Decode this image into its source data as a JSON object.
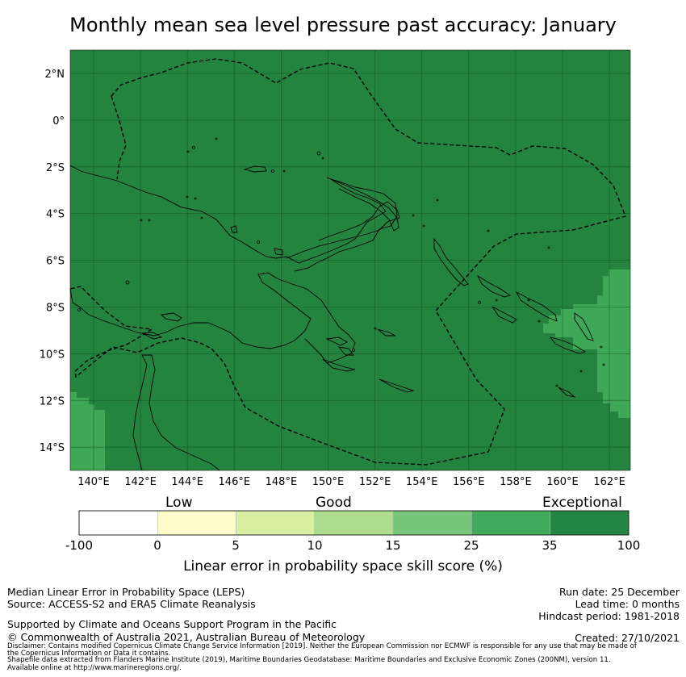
{
  "title": "Monthly mean sea level pressure past accuracy: January",
  "map": {
    "lat_labels": [
      "2°N",
      "0°",
      "2°S",
      "4°S",
      "6°S",
      "8°S",
      "10°S",
      "12°S",
      "14°S"
    ],
    "lon_labels": [
      "140°E",
      "142°E",
      "144°E",
      "146°E",
      "148°E",
      "150°E",
      "152°E",
      "154°E",
      "156°E",
      "158°E",
      "160°E",
      "162°E"
    ],
    "colors": {
      "exceptional": "#24843f",
      "good_high": "#3ea856",
      "grid": "#0d4a1d",
      "coast": "#000000"
    }
  },
  "legend": {
    "categories": [
      "Low",
      "Good",
      "Exceptional"
    ],
    "tick_labels": [
      "-100",
      "0",
      "5",
      "10",
      "15",
      "25",
      "35",
      "100"
    ],
    "colors": [
      "#ffffff",
      "#fffccc",
      "#d9f0a3",
      "#addd8e",
      "#78c679",
      "#41ab5d",
      "#238443"
    ],
    "axis_label": "Linear error in probability space skill score (%)"
  },
  "footer": {
    "left1": "Median Linear Error in Probability Space (LEPS)",
    "left2": "Source: ACCESS-S2 and ERA5 Climate Reanalysis",
    "left3": "Supported by Climate and Oceans Support Program in the Pacific",
    "left4": "© Commonwealth of Australia 2021, Australian Bureau of Meteorology",
    "right1": "Run date: 25 December",
    "right2": "Lead time: 0 months",
    "right3": "Hindcast period: 1981-2018",
    "right4": "Created: 27/10/2021",
    "disclaimer1": "Disclaimer: Contains modified Copernicus Climate Change Service Information [2019]. Neither the European Commission nor ECMWF is responsible for any use that may be made of",
    "disclaimer2": "the Copernicus Information or Data it contains.",
    "shapefile1": "Shapefile data extracted from Flanders Marine Institute (2019), Maritime Boundaries Geodatabase: Maritime Boundaries and Exclusive Economic Zones (200NM), version 11.",
    "shapefile2": "Available online at http://www.marineregions.org/."
  }
}
